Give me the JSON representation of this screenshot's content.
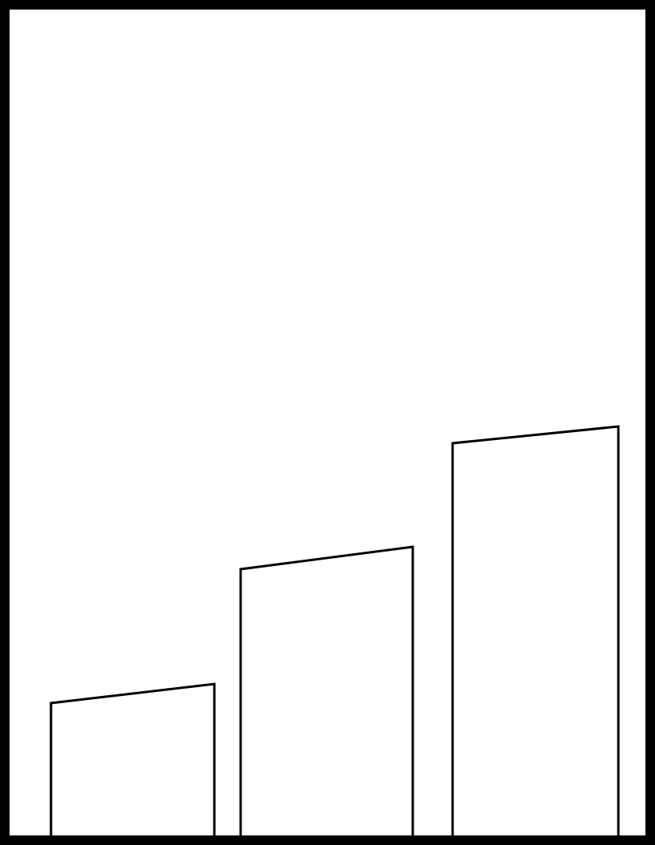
{
  "figure": {
    "stroke_color": "#000000",
    "background_color": "#ffffff",
    "border_color": "#000000",
    "blocks": [
      {
        "id": "block-1",
        "relative_height": 1.0
      },
      {
        "id": "block-2",
        "relative_height": 2.05
      },
      {
        "id": "block-3",
        "relative_height": 3.03
      }
    ]
  }
}
